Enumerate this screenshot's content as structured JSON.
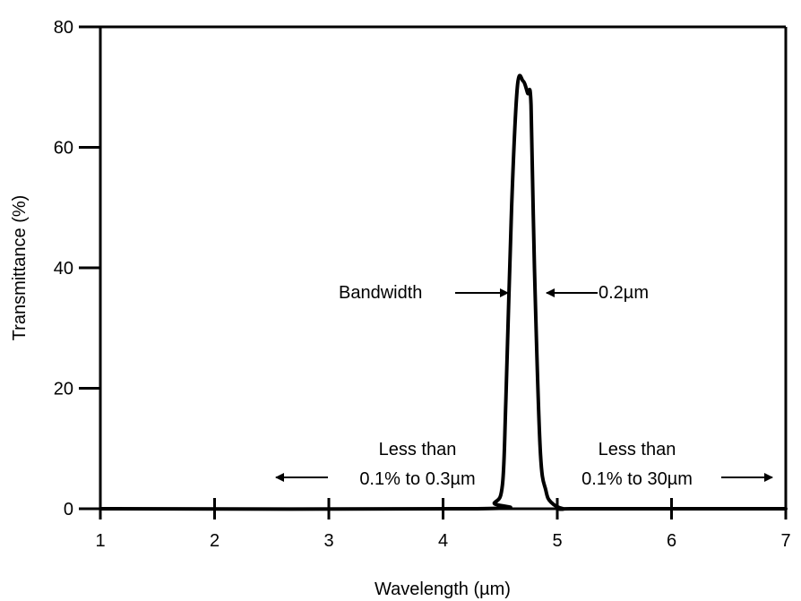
{
  "chart_data": {
    "type": "line",
    "xlabel": "Wavelength (µm)",
    "ylabel": "Transmittance (%)",
    "xlim": [
      1,
      7
    ],
    "ylim": [
      0,
      80
    ],
    "x_ticks": [
      "1",
      "2",
      "3",
      "4",
      "5",
      "6",
      "7"
    ],
    "y_ticks": [
      "0",
      "20",
      "40",
      "60",
      "80"
    ],
    "grid": false,
    "legend": "none",
    "series": [
      {
        "x": [
          1.0,
          4.3,
          4.45,
          4.52,
          4.55,
          4.6,
          4.65,
          4.7,
          4.74,
          4.77,
          4.8,
          4.85,
          4.9,
          4.95,
          5.05,
          5.2,
          7.0
        ],
        "y": [
          0,
          0,
          1,
          4,
          18,
          50,
          70,
          71,
          69,
          67,
          40,
          10,
          3,
          1,
          0,
          0,
          0
        ]
      }
    ],
    "annotations": {
      "bandwidth_label": "Bandwidth",
      "bandwidth_value": "0.2µm",
      "left_line1": "Less than",
      "left_line2": "0.1% to 0.3µm",
      "right_line1": "Less than",
      "right_line2": "0.1% to 30µm"
    },
    "colors": {
      "line": "#000000",
      "axis": "#000000"
    }
  }
}
